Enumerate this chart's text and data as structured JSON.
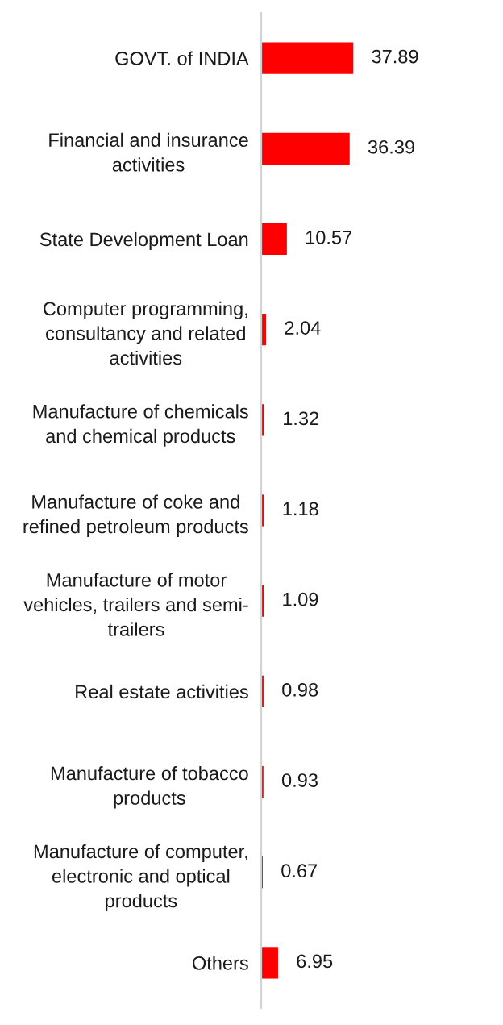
{
  "chart_data": {
    "type": "bar",
    "orientation": "horizontal",
    "categories": [
      "GOVT. of INDIA",
      "Financial and insurance\nactivities",
      "State Development Loan",
      "Computer programming,\nconsultancy and related\nactivities",
      "Manufacture of chemicals\nand chemical products",
      "Manufacture of coke and\nrefined petroleum products",
      "Manufacture of motor\nvehicles, trailers and semi-\ntrailers",
      "Real estate activities",
      "Manufacture of tobacco\nproducts",
      "Manufacture of computer,\nelectronic and optical\nproducts",
      "Others"
    ],
    "values": [
      37.89,
      36.39,
      10.57,
      2.04,
      1.32,
      1.18,
      1.09,
      0.98,
      0.93,
      0.67,
      6.95
    ],
    "color": "#ff0000",
    "tick_labels": "y",
    "data_labels": true
  }
}
